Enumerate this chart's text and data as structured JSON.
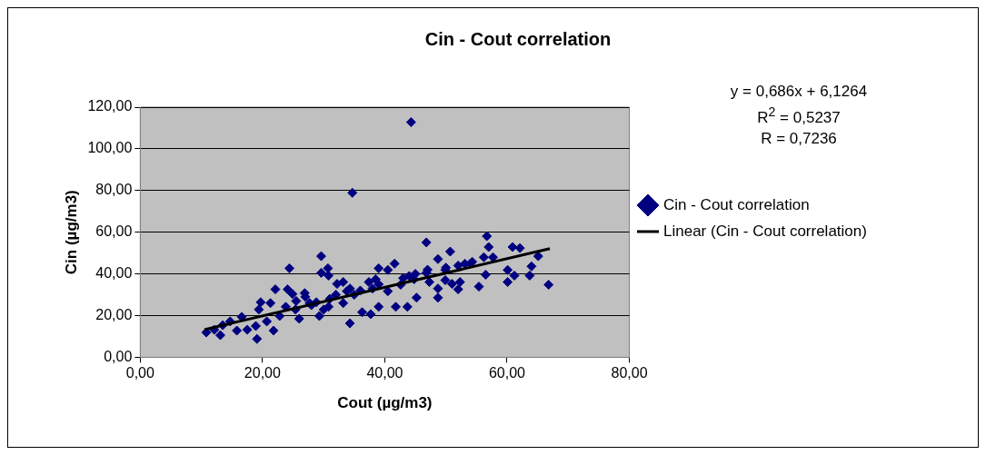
{
  "chart_data": {
    "type": "scatter",
    "title": "Cin - Cout correlation",
    "xlabel": "Cout (µg/m3)",
    "ylabel": "Cin (µg/m3)",
    "annotations": [
      "y = 0,686x + 6,1264",
      "R$^{2}$ = 0,5237",
      "R = 0,7236"
    ],
    "xlim": [
      0,
      80
    ],
    "xticks": [
      {
        "value": 0,
        "label": "0,00"
      },
      {
        "value": 20,
        "label": "20,00"
      },
      {
        "value": 40,
        "label": "40,00"
      },
      {
        "value": 60,
        "label": "60,00"
      },
      {
        "value": 80,
        "label": "80,00"
      }
    ],
    "ylim": [
      0,
      120
    ],
    "yticks": [
      {
        "value": 0,
        "label": "0,00"
      },
      {
        "value": 20,
        "label": "20,00"
      },
      {
        "value": 40,
        "label": "40,00"
      },
      {
        "value": 60,
        "label": "60,00"
      },
      {
        "value": 80,
        "label": "80,00"
      },
      {
        "value": 100,
        "label": "100,00"
      },
      {
        "value": 120,
        "label": "120,00"
      }
    ],
    "grid": "y",
    "legend": "right",
    "series": [
      {
        "name": "Cin - Cout correlation",
        "marker": "diamond",
        "color": "#000080",
        "x": [
          44.3,
          34.7,
          10.8,
          12.1,
          13.1,
          13.5,
          14.7,
          15.8,
          16.6,
          17.5,
          18.9,
          19.1,
          19.4,
          19.7,
          20.7,
          21.3,
          21.8,
          22.1,
          22.8,
          23.8,
          24.1,
          24.4,
          24.9,
          25.4,
          26.0,
          26.9,
          27.7,
          28.8,
          29.3,
          29.6,
          29.6,
          30.0,
          30.7,
          30.8,
          30.8,
          32.2,
          33.2,
          33.2,
          33.8,
          34.3,
          34.3,
          36.3,
          37.7,
          39.0,
          39.0,
          37.4,
          38.5,
          40.5,
          41.6,
          41.8,
          43.7,
          40.5,
          42.6,
          44.8,
          45.2,
          46.8,
          46.8,
          47.3,
          48.7,
          48.7,
          48.7,
          49.9,
          50.7,
          51.0,
          52.3,
          52.0,
          53.1,
          54.3,
          55.4,
          56.2,
          56.5,
          56.7,
          57.0,
          57.7,
          60.1,
          60.1,
          61.2,
          60.9,
          62.1,
          63.7,
          64.0,
          65.1,
          66.8,
          49.9,
          25.5,
          27,
          28,
          31,
          32,
          35,
          36,
          38,
          39,
          43,
          44,
          45,
          47,
          50,
          52,
          54
        ],
        "values": [
          112.8,
          78.9,
          11.9,
          13.2,
          10.6,
          15.4,
          17.2,
          12.8,
          19.4,
          13.2,
          15.0,
          8.8,
          22.9,
          26.4,
          17.2,
          26.0,
          12.8,
          32.6,
          19.8,
          24.2,
          32.6,
          42.7,
          30.4,
          22.9,
          18.5,
          30.8,
          26.0,
          26.4,
          19.8,
          48.5,
          40.5,
          22.9,
          42.7,
          39.2,
          24.2,
          35.2,
          36.1,
          26.0,
          31.7,
          16.3,
          33.0,
          21.6,
          20.7,
          24.2,
          42.7,
          36.1,
          37.4,
          41.9,
          44.9,
          24.2,
          24.2,
          31.7,
          34.8,
          37.4,
          28.6,
          55.1,
          40.5,
          36.1,
          47.1,
          33.0,
          28.6,
          41.9,
          50.7,
          35.2,
          36.1,
          32.6,
          44.9,
          45.8,
          33.9,
          48.0,
          39.6,
          58.1,
          52.9,
          48.0,
          41.9,
          36.1,
          39.2,
          52.9,
          52.4,
          39.2,
          43.6,
          48.5,
          34.8,
          37.0,
          27,
          29,
          25,
          28,
          30,
          30,
          32,
          33,
          35,
          38,
          39,
          40,
          42,
          43,
          44,
          45
        ]
      },
      {
        "name": "Linear (Cin - Cout correlation)",
        "type": "line",
        "color": "#000000",
        "x": [
          10.5,
          67
        ],
        "values": [
          13.3,
          52.1
        ]
      }
    ]
  }
}
